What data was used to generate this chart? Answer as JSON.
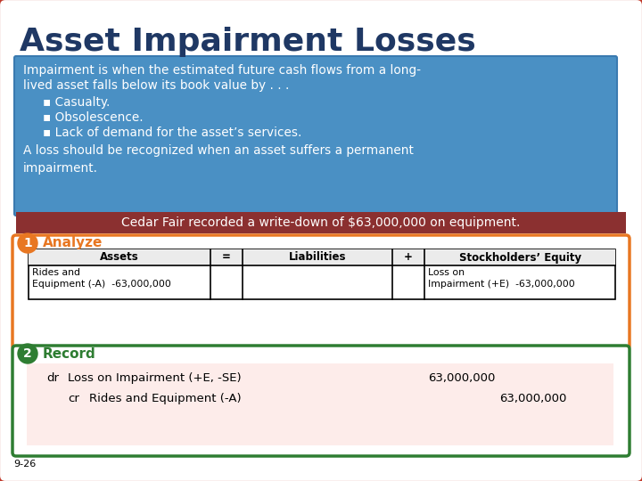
{
  "title": "Asset Impairment Losses",
  "title_color": "#1F3864",
  "bg_color": "#FFFFFF",
  "border_color": "#C0392B",
  "blue_box_color": "#4A90C4",
  "blue_box_border": "#3A7AB0",
  "blue_box_text_line1": "Impairment is when the estimated future cash flows from a long-",
  "blue_box_text_line2": "lived asset falls below its book value by . . .",
  "blue_box_bullets": [
    "▪ Casualty.",
    "▪ Obsolescence.",
    "▪ Lack of demand for the asset’s services."
  ],
  "blue_box_text_last": "A loss should be recognized when an asset suffers a permanent\nimpairment.",
  "red_box_color": "#8B3030",
  "red_box_text": "Cedar Fair recorded a write-down of $63,000,000 on equipment.",
  "analyze_label": "1",
  "analyze_title": "Analyze",
  "analyze_color": "#E87722",
  "table_headers": [
    "Assets",
    "=",
    "Liabilities",
    "+",
    "Stockholders’ Equity"
  ],
  "table_col0_row1": "Rides and\nEquipment (-A)  -63,000,000",
  "table_col4_row1": "Loss on\nImpairment (+E)  -63,000,000",
  "record_label": "2",
  "record_title": "Record",
  "record_color": "#2E7D32",
  "record_bg": "#FDECEA",
  "dr_label": "dr",
  "dr_text": "Loss on Impairment (+E, -SE)",
  "dr_amount": "63,000,000",
  "cr_label": "cr",
  "cr_text": "Rides and Equipment (-A)",
  "cr_amount": "63,000,000",
  "footnote": "9-26"
}
